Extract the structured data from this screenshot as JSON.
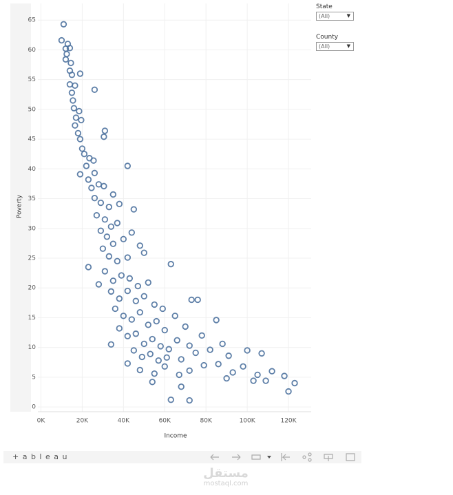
{
  "chart_data": {
    "type": "scatter",
    "x_label": "Income",
    "y_label": "Poverty",
    "color": "#4e729e",
    "grid": true,
    "xlim": [
      -1500,
      131000
    ],
    "ylim": [
      -0.8,
      67.8
    ],
    "xticks": [
      {
        "value": 0,
        "label": "0K"
      },
      {
        "value": 20000,
        "label": "20K"
      },
      {
        "value": 40000,
        "label": "40K"
      },
      {
        "value": 60000,
        "label": "60K"
      },
      {
        "value": 80000,
        "label": "80K"
      },
      {
        "value": 100000,
        "label": "100K"
      },
      {
        "value": 120000,
        "label": "120K"
      }
    ],
    "yticks": [
      0,
      5,
      10,
      15,
      20,
      25,
      30,
      35,
      40,
      45,
      50,
      55,
      60,
      65
    ],
    "x": [
      11000,
      10000,
      12000,
      13000,
      14000,
      12500,
      12000,
      14500,
      14000,
      15000,
      19000,
      14000,
      16500,
      15000,
      26000,
      15500,
      16000,
      18500,
      17000,
      16500,
      19500,
      18000,
      19000,
      20000,
      21000,
      23500,
      25500,
      31000,
      30500,
      42000,
      22000,
      19000,
      26000,
      23000,
      28000,
      24500,
      30500,
      35000,
      26000,
      29000,
      33000,
      38000,
      45000,
      27000,
      31000,
      34000,
      37000,
      29000,
      32000,
      35000,
      40000,
      44000,
      30000,
      33000,
      37000,
      42000,
      48000,
      50000,
      23000,
      31000,
      35000,
      39000,
      43000,
      47000,
      52000,
      63000,
      28000,
      34000,
      38000,
      42000,
      46000,
      50000,
      55000,
      59000,
      73000,
      76000,
      36000,
      40000,
      44000,
      48000,
      52000,
      56000,
      60000,
      65000,
      70000,
      85000,
      38000,
      42000,
      46000,
      50000,
      54000,
      58000,
      62000,
      66000,
      72000,
      78000,
      34000,
      45000,
      49000,
      53000,
      57000,
      61000,
      68000,
      75000,
      82000,
      88000,
      91000,
      100000,
      107000,
      42000,
      48000,
      55000,
      60000,
      67000,
      72000,
      79000,
      86000,
      93000,
      98000,
      105000,
      112000,
      109000,
      118000,
      123000,
      120000,
      54000,
      68000,
      63000,
      72000,
      90000,
      103000
    ],
    "values": [
      64.3,
      61.6,
      60.2,
      61,
      60.3,
      59.3,
      58.4,
      57.8,
      56.5,
      55.8,
      56,
      54.2,
      54,
      52.8,
      53.3,
      51.5,
      50.2,
      49.7,
      48.6,
      47.3,
      48.2,
      46,
      45,
      43.4,
      42.5,
      41.8,
      41.4,
      46.4,
      45.4,
      40.5,
      40.5,
      39.1,
      39.3,
      38.2,
      37.4,
      36.8,
      37.1,
      35.7,
      35.1,
      34.3,
      33.6,
      34.1,
      33.2,
      32.2,
      31.5,
      30.3,
      30.9,
      29.6,
      28.6,
      27.4,
      28.2,
      29.3,
      26.6,
      25.3,
      24.5,
      25.1,
      27.1,
      25.9,
      23.5,
      22.8,
      21.2,
      22.1,
      21.6,
      20.3,
      20.9,
      24,
      20.6,
      19.4,
      18.2,
      19.5,
      17.8,
      18.6,
      17.2,
      16.5,
      18,
      18,
      16.5,
      15.3,
      14.7,
      15.9,
      13.8,
      14.4,
      12.9,
      15.3,
      13.5,
      14.6,
      13.2,
      11.9,
      12.3,
      10.6,
      11.4,
      10.2,
      9.7,
      11.2,
      10.3,
      12,
      10.5,
      9.5,
      8.4,
      8.9,
      7.8,
      8.3,
      8,
      9.1,
      9.6,
      10.6,
      8.6,
      9.5,
      9,
      7.3,
      6.2,
      5.6,
      6.8,
      5.4,
      6.1,
      7,
      7.2,
      5.8,
      6.8,
      5.4,
      6,
      4.4,
      5.2,
      4,
      2.6,
      4.2,
      3.4,
      1.2,
      1.1,
      4.8,
      4.4
    ]
  },
  "filters": [
    {
      "label": "State",
      "value": "(All)"
    },
    {
      "label": "County",
      "value": "(All)"
    }
  ],
  "toolbar": {
    "logo": "+ a b l e a u"
  },
  "watermark": {
    "arabic": "مستقل",
    "url": "mostaql.com"
  }
}
